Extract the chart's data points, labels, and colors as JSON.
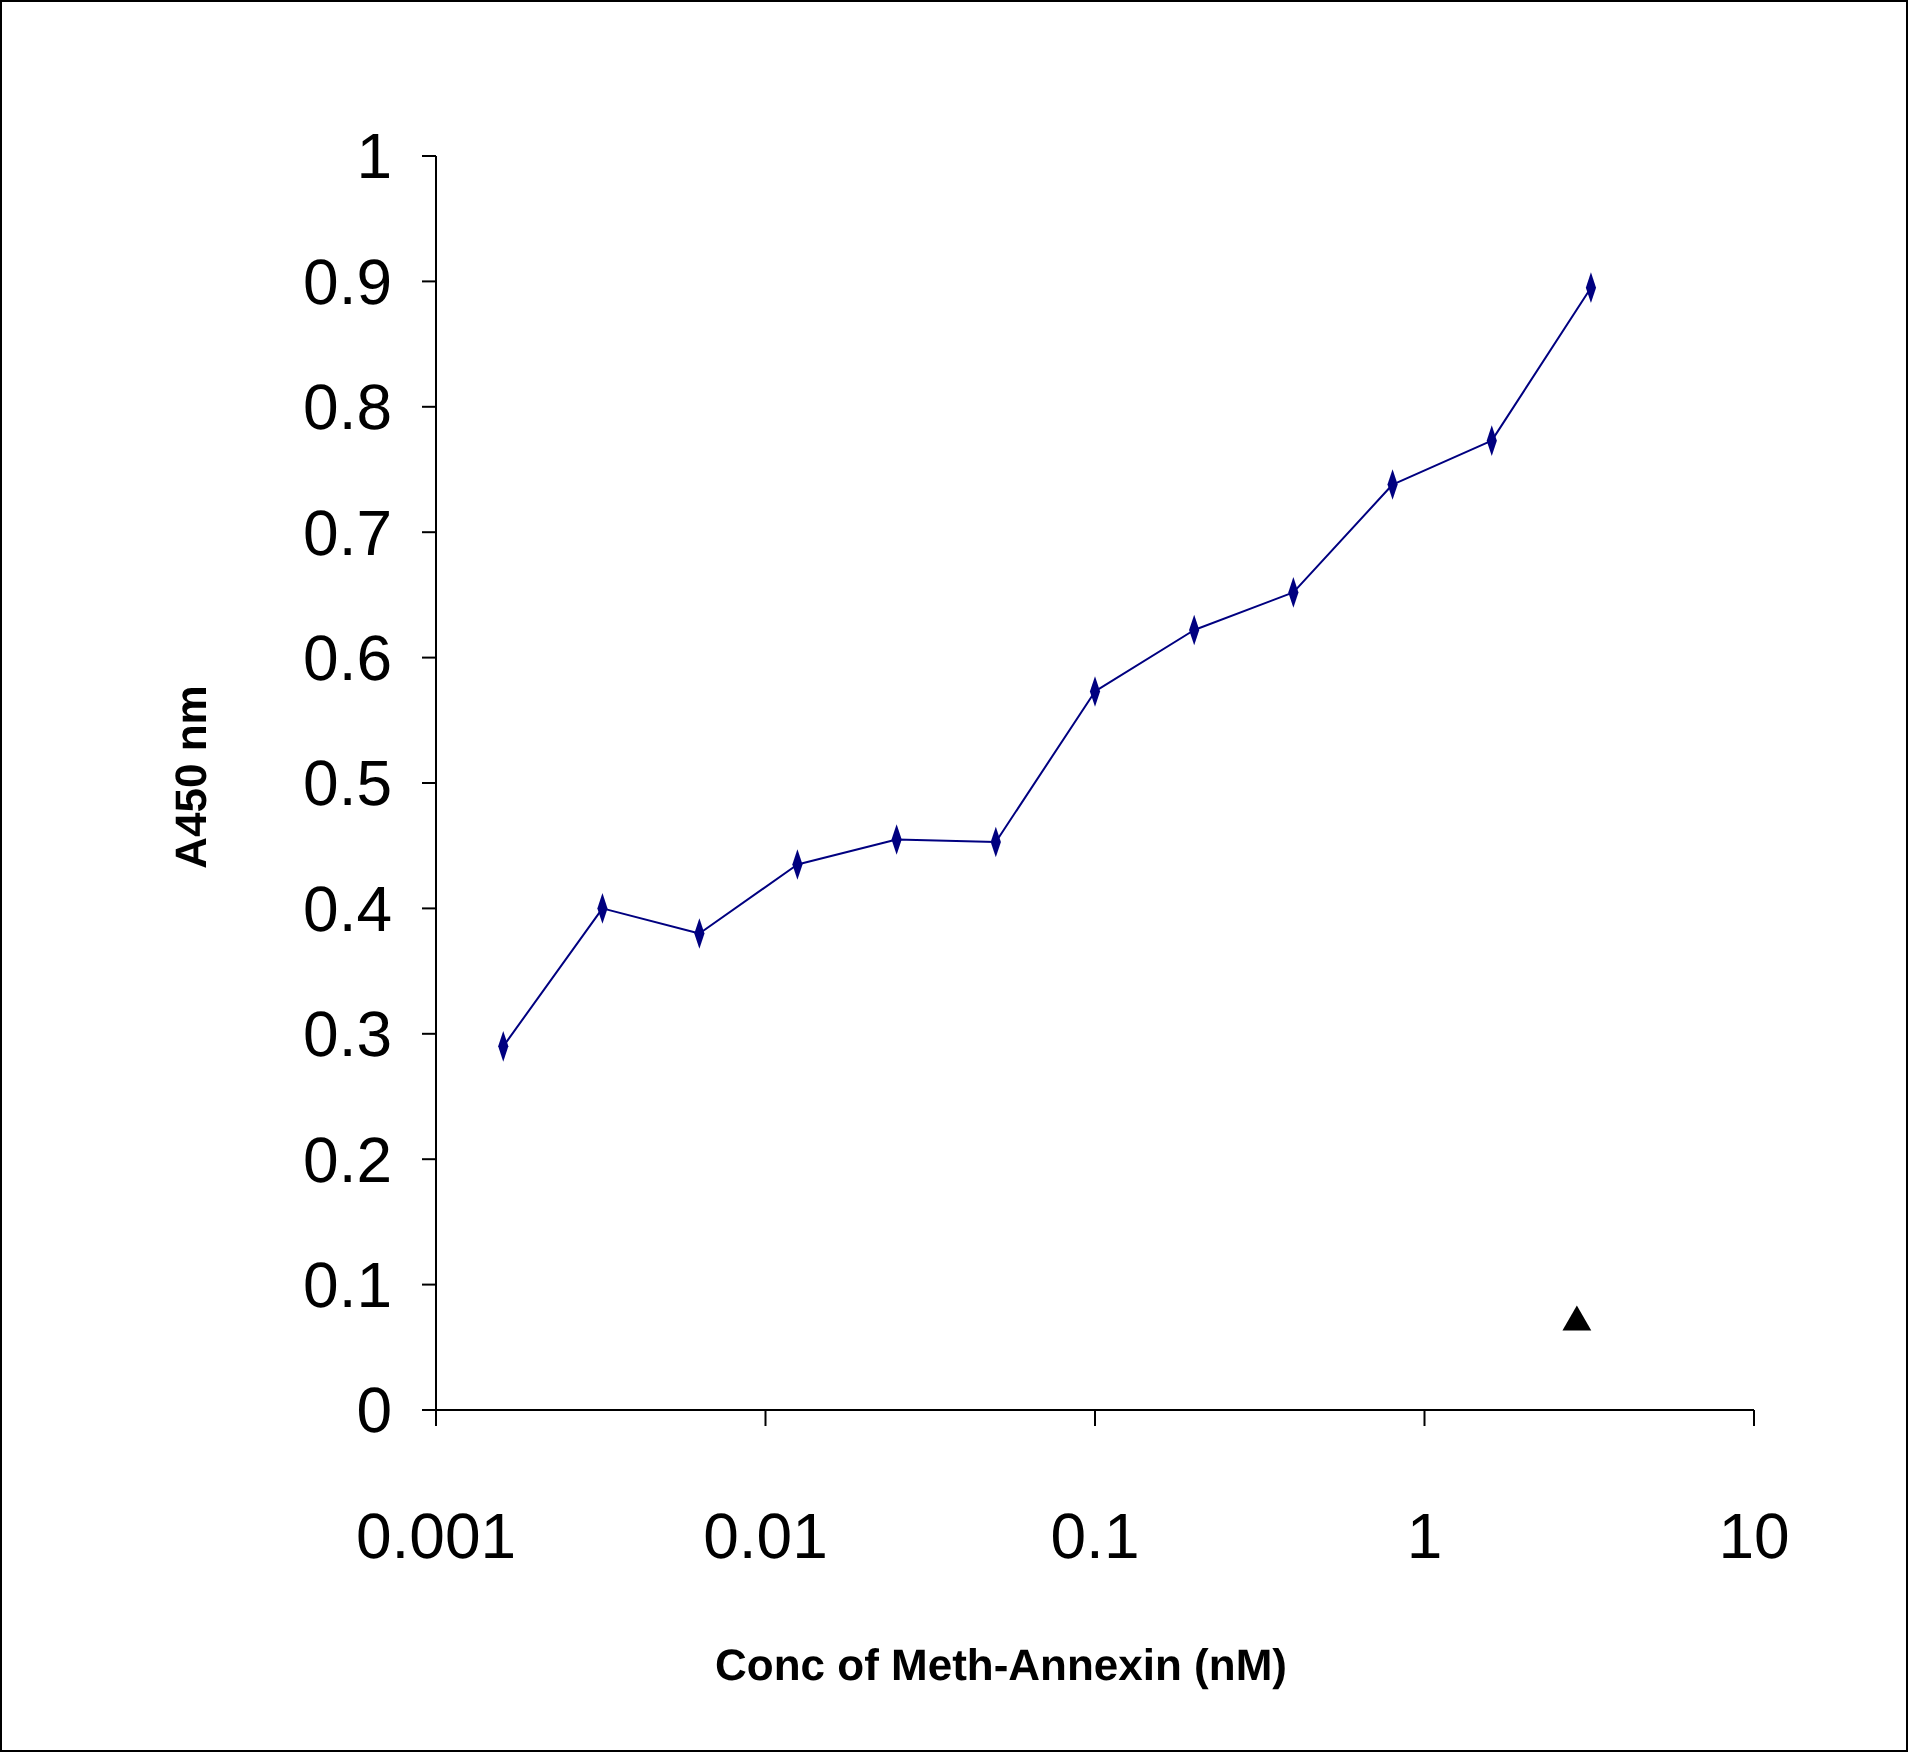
{
  "chart_data": {
    "type": "line",
    "xlabel": "Conc of Meth-Annexin (nM)",
    "ylabel": "A450 nm",
    "log": "x",
    "xlim": [
      0.001,
      10
    ],
    "xticks": [
      0.001,
      0.01,
      0.1,
      1,
      10
    ],
    "ylim": [
      0,
      1
    ],
    "yticks": [
      0,
      0.1,
      0.2,
      0.3,
      0.4,
      0.5,
      0.6,
      0.7,
      0.8,
      0.9,
      1
    ],
    "grid": false,
    "series": [
      {
        "marker": "diamond",
        "color": "#000080",
        "x": [
          0.0016,
          0.0032,
          0.0063,
          0.0125,
          0.025,
          0.05,
          0.1,
          0.2,
          0.4,
          0.8,
          1.6,
          3.2
        ],
        "values": [
          0.29,
          0.4,
          0.38,
          0.435,
          0.455,
          0.453,
          0.573,
          0.622,
          0.652,
          0.738,
          0.773,
          0.895
        ]
      },
      {
        "type": "scatter",
        "marker": "triangle",
        "color": "#000000",
        "x": [
          2.9
        ],
        "values": [
          0.07
        ]
      }
    ]
  }
}
